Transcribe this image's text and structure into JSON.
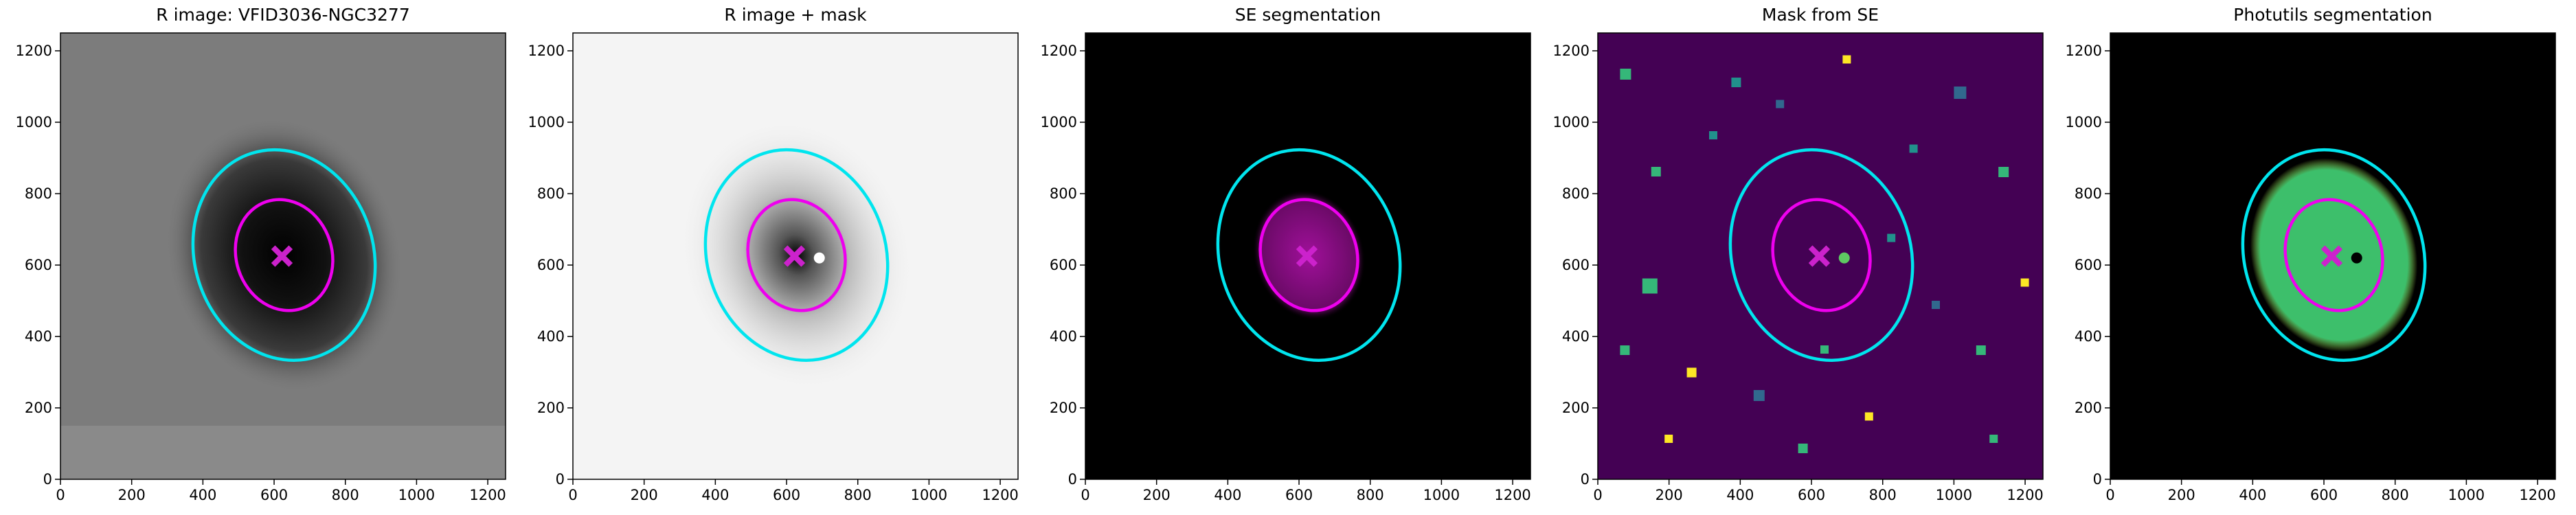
{
  "chart_data": [
    {
      "type": "image",
      "title": "R image: VFID3036-NGC3277",
      "cmap": "gray",
      "xlim": [
        0,
        1250
      ],
      "ylim": [
        0,
        1250
      ],
      "xticks": [
        0,
        200,
        400,
        600,
        800,
        1000,
        1200
      ],
      "yticks": [
        0,
        200,
        400,
        600,
        800,
        1000,
        1200
      ],
      "ellipses": [
        {
          "cx": 628,
          "cy": 628,
          "a": 300,
          "b": 250,
          "angle": 108,
          "color": "#00e5ee"
        },
        {
          "cx": 628,
          "cy": 628,
          "a": 158,
          "b": 134,
          "angle": 108,
          "color": "#ee00ee"
        }
      ],
      "marker": {
        "x": 622,
        "y": 625,
        "color": "#cc22cc"
      }
    },
    {
      "type": "image",
      "title": "R image + mask",
      "cmap": "gray_r",
      "xlim": [
        0,
        1250
      ],
      "ylim": [
        0,
        1250
      ],
      "xticks": [
        0,
        200,
        400,
        600,
        800,
        1000,
        1200
      ],
      "yticks": [
        0,
        200,
        400,
        600,
        800,
        1000,
        1200
      ],
      "ellipses": [
        {
          "cx": 628,
          "cy": 628,
          "a": 300,
          "b": 250,
          "angle": 108,
          "color": "#00e5ee"
        },
        {
          "cx": 628,
          "cy": 628,
          "a": 158,
          "b": 134,
          "angle": 108,
          "color": "#ee00ee"
        }
      ],
      "marker": {
        "x": 622,
        "y": 625,
        "color": "#cc22cc"
      },
      "companion": {
        "x": 692,
        "y": 620,
        "color": "#ffffff"
      }
    },
    {
      "type": "image",
      "title": "SE segmentation",
      "cmap": "magma",
      "xlim": [
        0,
        1250
      ],
      "ylim": [
        0,
        1250
      ],
      "xticks": [
        0,
        200,
        400,
        600,
        800,
        1000,
        1200
      ],
      "yticks": [
        0,
        200,
        400,
        600,
        800,
        1000,
        1200
      ],
      "ellipses": [
        {
          "cx": 628,
          "cy": 628,
          "a": 300,
          "b": 250,
          "angle": 108,
          "color": "#00e5ee"
        },
        {
          "cx": 628,
          "cy": 628,
          "a": 158,
          "b": 134,
          "angle": 108,
          "color": "#ee00ee"
        }
      ],
      "marker": {
        "x": 622,
        "y": 625,
        "color": "#cc22cc"
      }
    },
    {
      "type": "image",
      "title": "Mask from SE",
      "cmap": "viridis",
      "xlim": [
        0,
        1250
      ],
      "ylim": [
        0,
        1250
      ],
      "xticks": [
        0,
        200,
        400,
        600,
        800,
        1000,
        1200
      ],
      "yticks": [
        0,
        200,
        400,
        600,
        800,
        1000,
        1200
      ],
      "ellipses": [
        {
          "cx": 628,
          "cy": 628,
          "a": 300,
          "b": 250,
          "angle": 108,
          "color": "#00e5ee"
        },
        {
          "cx": 628,
          "cy": 628,
          "a": 158,
          "b": 134,
          "angle": 108,
          "color": "#ee00ee"
        }
      ],
      "marker": {
        "x": 622,
        "y": 625,
        "color": "#cc22cc"
      },
      "companion": {
        "x": 692,
        "y": 620,
        "color": "#5ec962"
      }
    },
    {
      "type": "image",
      "title": "Photutils segmentation",
      "cmap": "greens",
      "xlim": [
        0,
        1250
      ],
      "ylim": [
        0,
        1250
      ],
      "xticks": [
        0,
        200,
        400,
        600,
        800,
        1000,
        1200
      ],
      "yticks": [
        0,
        200,
        400,
        600,
        800,
        1000,
        1200
      ],
      "ellipses": [
        {
          "cx": 628,
          "cy": 628,
          "a": 300,
          "b": 250,
          "angle": 108,
          "color": "#00e5ee"
        },
        {
          "cx": 628,
          "cy": 628,
          "a": 158,
          "b": 134,
          "angle": 108,
          "color": "#ee00ee"
        }
      ],
      "marker": {
        "x": 622,
        "y": 625,
        "color": "#cc22cc"
      },
      "companion": {
        "x": 692,
        "y": 620,
        "color": "#000000"
      }
    }
  ]
}
